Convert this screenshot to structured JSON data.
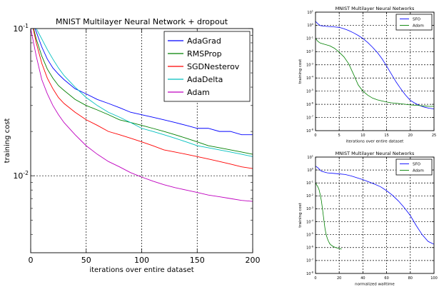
{
  "chart_data": [
    {
      "type": "line",
      "title": "MNIST Multilayer Neural Network + dropout",
      "xlabel": "iterations over entire dataset",
      "ylabel": "training cost",
      "xlim": [
        0,
        200
      ],
      "ylim": [
        0.003,
        0.1
      ],
      "yscale": "log",
      "x_ticks": [
        "0",
        "50",
        "100",
        "150",
        "200"
      ],
      "y_ticks": [
        {
          "value": 0.1,
          "label": "10^-1"
        },
        {
          "value": 0.01,
          "label": "10^-2"
        }
      ],
      "grid": true,
      "legend": "top-right",
      "series": [
        {
          "name": "AdaGrad",
          "color": "#0000ff",
          "x": [
            0,
            5,
            10,
            15,
            20,
            25,
            30,
            40,
            50,
            60,
            70,
            80,
            90,
            100,
            110,
            120,
            130,
            140,
            150,
            160,
            170,
            180,
            190,
            200
          ],
          "values": [
            0.12,
            0.095,
            0.075,
            0.062,
            0.054,
            0.049,
            0.045,
            0.039,
            0.036,
            0.033,
            0.031,
            0.029,
            0.027,
            0.026,
            0.025,
            0.024,
            0.023,
            0.022,
            0.021,
            0.021,
            0.02,
            0.02,
            0.019,
            0.019
          ]
        },
        {
          "name": "RMSProp",
          "color": "#008000",
          "x": [
            0,
            5,
            10,
            15,
            20,
            25,
            30,
            40,
            50,
            60,
            70,
            80,
            90,
            100,
            110,
            120,
            130,
            140,
            150,
            160,
            170,
            180,
            190,
            200
          ],
          "values": [
            0.12,
            0.085,
            0.065,
            0.053,
            0.046,
            0.041,
            0.038,
            0.033,
            0.03,
            0.028,
            0.026,
            0.024,
            0.023,
            0.022,
            0.021,
            0.02,
            0.019,
            0.018,
            0.017,
            0.016,
            0.0155,
            0.015,
            0.0145,
            0.014
          ]
        },
        {
          "name": "SGDNesterov",
          "color": "#ff0000",
          "x": [
            0,
            5,
            10,
            15,
            20,
            25,
            30,
            40,
            50,
            60,
            70,
            80,
            90,
            100,
            110,
            120,
            130,
            140,
            150,
            160,
            170,
            180,
            190,
            200
          ],
          "values": [
            0.12,
            0.08,
            0.058,
            0.046,
            0.039,
            0.034,
            0.031,
            0.027,
            0.024,
            0.022,
            0.02,
            0.019,
            0.018,
            0.017,
            0.016,
            0.015,
            0.0145,
            0.014,
            0.0135,
            0.013,
            0.0125,
            0.012,
            0.0115,
            0.0112
          ]
        },
        {
          "name": "AdaDelta",
          "color": "#00bfbf",
          "x": [
            0,
            5,
            10,
            15,
            20,
            25,
            30,
            40,
            50,
            60,
            70,
            80,
            90,
            100,
            110,
            120,
            130,
            140,
            150,
            160,
            170,
            180,
            190,
            200
          ],
          "values": [
            0.12,
            0.1,
            0.085,
            0.072,
            0.062,
            0.054,
            0.048,
            0.04,
            0.034,
            0.03,
            0.027,
            0.025,
            0.023,
            0.021,
            0.02,
            0.019,
            0.018,
            0.017,
            0.016,
            0.0155,
            0.015,
            0.0145,
            0.014,
            0.0135
          ]
        },
        {
          "name": "Adam",
          "color": "#bf00bf",
          "x": [
            0,
            5,
            10,
            15,
            20,
            25,
            30,
            40,
            50,
            60,
            70,
            80,
            90,
            100,
            110,
            120,
            130,
            140,
            150,
            160,
            170,
            180,
            190,
            200
          ],
          "values": [
            0.1,
            0.065,
            0.045,
            0.036,
            0.03,
            0.026,
            0.023,
            0.019,
            0.016,
            0.014,
            0.0125,
            0.0115,
            0.0105,
            0.0098,
            0.0092,
            0.0087,
            0.0083,
            0.008,
            0.0077,
            0.0074,
            0.0072,
            0.007,
            0.0068,
            0.0067
          ]
        }
      ]
    },
    {
      "type": "line",
      "title": "MNIST Multilayer Neural Networks",
      "xlabel": "iterations over entire dataset",
      "ylabel": "training cost",
      "xlim": [
        0,
        25
      ],
      "ylim": [
        1e-08,
        10
      ],
      "yscale": "log",
      "x_ticks": [
        "0",
        "5",
        "10",
        "15",
        "20",
        "25"
      ],
      "y_ticks": [
        "10^1",
        "10^0",
        "10^-1",
        "10^-2",
        "10^-3",
        "10^-4",
        "10^-5",
        "10^-6",
        "10^-7",
        "10^-8"
      ],
      "grid": true,
      "legend": "top-right",
      "series": [
        {
          "name": "SFO",
          "color": "#0000ff",
          "x": [
            0,
            0.5,
            1,
            2,
            3,
            4,
            5,
            6,
            7,
            8,
            9,
            10,
            11,
            12,
            13,
            14,
            15,
            16,
            17,
            18,
            19,
            20,
            21,
            22,
            23,
            24,
            25
          ],
          "values": [
            2.0,
            1.3,
            0.95,
            0.85,
            0.8,
            0.75,
            0.7,
            0.55,
            0.4,
            0.27,
            0.17,
            0.1,
            0.05,
            0.022,
            0.009,
            0.003,
            0.0008,
            0.0002,
            5e-05,
            1.5e-05,
            5e-06,
            2e-06,
            1.2e-06,
            8e-07,
            6e-07,
            5e-07,
            4.5e-07
          ]
        },
        {
          "name": "Adam",
          "color": "#008000",
          "x": [
            0,
            0.5,
            1,
            2,
            3,
            4,
            5,
            6,
            7,
            8,
            9,
            10,
            11,
            12,
            13,
            14,
            15,
            16,
            17,
            18,
            19,
            20,
            21,
            22,
            23,
            24,
            25
          ],
          "values": [
            0.1,
            0.06,
            0.045,
            0.035,
            0.028,
            0.018,
            0.009,
            0.004,
            0.0012,
            0.0002,
            3e-05,
            1e-05,
            5e-06,
            3e-06,
            2.2e-06,
            1.8e-06,
            1.5e-06,
            1.3e-06,
            1.2e-06,
            1.1e-06,
            1e-06,
            9e-07,
            8.5e-07,
            8e-07,
            7.5e-07,
            7e-07,
            7e-07
          ]
        }
      ]
    },
    {
      "type": "line",
      "title": "MNIST Multilayer Neural Networks",
      "xlabel": "normalized walltime",
      "ylabel": "training cost",
      "xlim": [
        0,
        100
      ],
      "ylim": [
        1e-08,
        10
      ],
      "yscale": "log",
      "x_ticks": [
        "0",
        "20",
        "40",
        "60",
        "80",
        "100"
      ],
      "y_ticks": [
        "10^1",
        "10^0",
        "10^-1",
        "10^-2",
        "10^-3",
        "10^-4",
        "10^-5",
        "10^-6",
        "10^-7",
        "10^-8"
      ],
      "grid": true,
      "legend": "top-right",
      "series": [
        {
          "name": "SFO",
          "color": "#0000ff",
          "x": [
            0,
            2,
            5,
            10,
            15,
            20,
            25,
            30,
            35,
            40,
            45,
            50,
            55,
            60,
            65,
            70,
            75,
            80,
            85,
            90,
            95,
            100
          ],
          "values": [
            2.0,
            1.5,
            0.8,
            0.6,
            0.55,
            0.5,
            0.45,
            0.35,
            0.25,
            0.18,
            0.12,
            0.08,
            0.05,
            0.025,
            0.011,
            0.004,
            0.0012,
            0.0003,
            5e-05,
            1e-05,
            3e-06,
            1.8e-06
          ]
        },
        {
          "name": "Adam",
          "color": "#008000",
          "x": [
            0,
            1,
            2,
            3,
            4,
            5,
            6,
            7,
            8,
            9,
            10,
            11,
            12,
            13,
            15,
            17,
            19,
            21,
            22
          ],
          "values": [
            0.1,
            0.07,
            0.05,
            0.03,
            0.012,
            0.004,
            0.0008,
            0.00015,
            3e-05,
            1e-05,
            5e-06,
            3e-06,
            2e-06,
            1.6e-06,
            1.2e-06,
            1e-06,
            9e-07,
            8e-07,
            7.5e-07
          ]
        }
      ]
    }
  ]
}
